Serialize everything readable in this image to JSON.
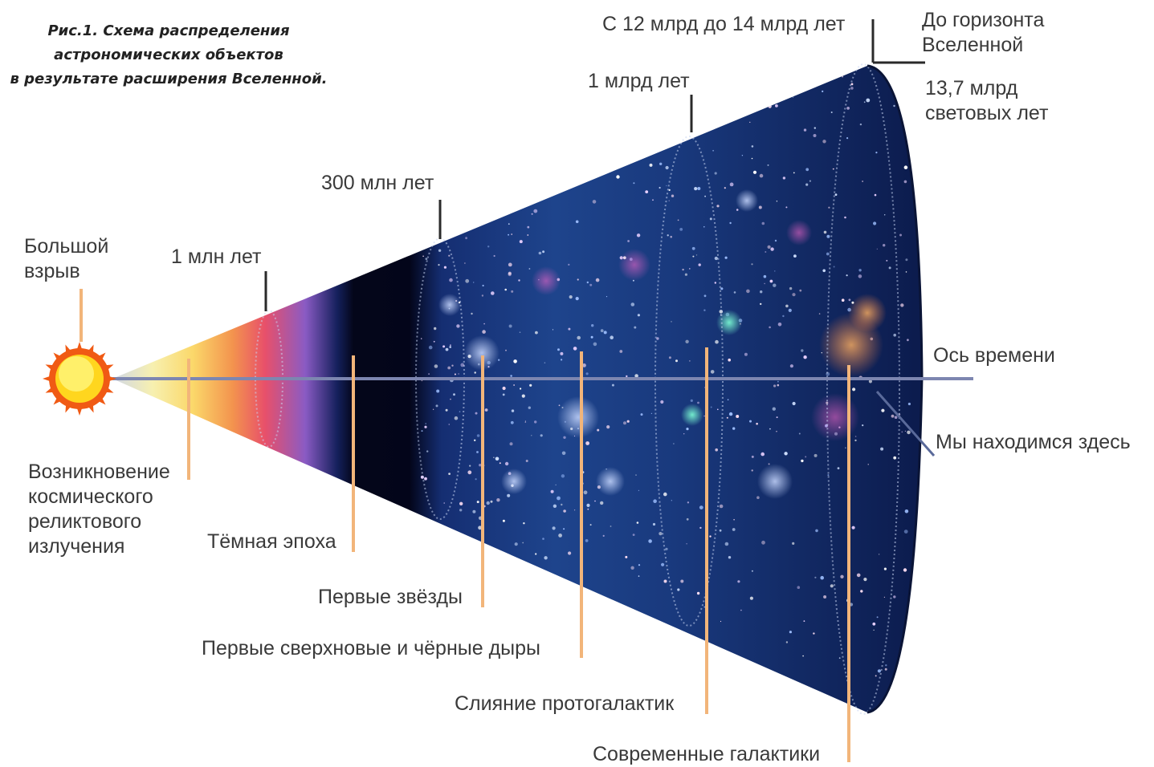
{
  "caption": {
    "line1": "Рис.1. Схема распределения",
    "line2": "астрономических объектов",
    "line3": "в результате расширения Вселенной."
  },
  "labels": {
    "big_bang": [
      "Большой",
      "взрыв"
    ],
    "one_million": "1 млн лет",
    "three_hundred_million": "300 млн лет",
    "one_billion": "1 млрд лет",
    "twelve_fourteen": "С 12 млрд до 14 млрд лет",
    "horizon": [
      "До горизонта",
      "Вселенной"
    ],
    "horizon_distance": [
      "13,7 млрд",
      "световых лет"
    ],
    "time_axis": "Ось времени",
    "we_are_here": "Мы находимся здесь",
    "relic_radiation": [
      "Возникновение",
      "космического",
      "реликтового",
      "излучения"
    ],
    "dark_age": "Тёмная эпоха",
    "first_stars": "Первые звёзды",
    "first_supernovae": "Первые сверхновые и чёрные дыры",
    "protogalaxy_merger": "Слияние протогалактик",
    "modern_galaxies": "Современные галактики"
  },
  "colors": {
    "leader_orange": "#f2b57a",
    "leader_dark": "#2a2a2a",
    "time_axis": "#7d86b0",
    "sun_core": "#ffe23a",
    "sun_rays": "#f05a14",
    "space_deep": "#0b1740",
    "space_mid": "#1d3e86"
  }
}
